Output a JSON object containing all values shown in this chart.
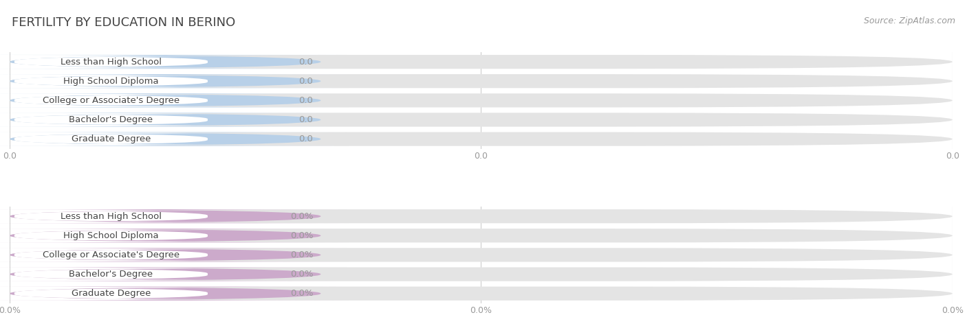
{
  "title": "FERTILITY BY EDUCATION IN BERINO",
  "source": "Source: ZipAtlas.com",
  "categories": [
    "Less than High School",
    "High School Diploma",
    "College or Associate's Degree",
    "Bachelor's Degree",
    "Graduate Degree"
  ],
  "top_values": [
    0.0,
    0.0,
    0.0,
    0.0,
    0.0
  ],
  "top_labels": [
    "0.0",
    "0.0",
    "0.0",
    "0.0",
    "0.0"
  ],
  "bottom_values": [
    0.0,
    0.0,
    0.0,
    0.0,
    0.0
  ],
  "bottom_labels": [
    "0.0%",
    "0.0%",
    "0.0%",
    "0.0%",
    "0.0%"
  ],
  "top_bar_color": "#b8d0e8",
  "top_bar_bg": "#e4e4e4",
  "top_label_bg": "#ffffff",
  "bottom_bar_color": "#ccaacb",
  "bottom_bar_bg": "#e4e4e4",
  "bottom_label_bg": "#ffffff",
  "title_fontsize": 13,
  "label_fontsize": 9.5,
  "tick_fontsize": 9,
  "source_fontsize": 9,
  "background_color": "#ffffff",
  "grid_color": "#cccccc",
  "axis_tick_color": "#999999",
  "text_color": "#444444",
  "value_text_color": "#999999"
}
